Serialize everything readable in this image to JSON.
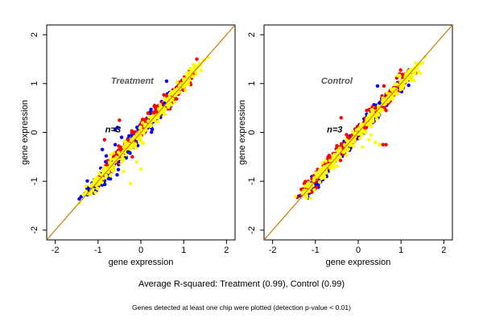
{
  "chart_data": [
    {
      "type": "scatter",
      "title": "Treatment",
      "annotation": "n=3",
      "xlabel": "gene expression",
      "ylabel": "gene expression",
      "xlim": [
        -2.2,
        2.2
      ],
      "ylim": [
        -2.2,
        2.2
      ],
      "xticks": [
        "-2",
        "-1",
        "0",
        "1",
        "2"
      ],
      "yticks": [
        "-2",
        "-1",
        "0",
        "1",
        "2"
      ],
      "reference_line": {
        "slope": 1,
        "intercept": 0,
        "color": "#cc7a00"
      },
      "grid": false,
      "series": [
        {
          "color": "#0000ff",
          "role": "bulk",
          "x": [
            -1.1,
            -0.9,
            -0.7,
            -0.5,
            -0.3,
            -0.1,
            0.1,
            0.3,
            0.5
          ],
          "y": [
            -1.08,
            -0.95,
            -0.62,
            -0.55,
            -0.35,
            -0.05,
            0.12,
            0.27,
            0.55
          ]
        },
        {
          "color": "#ff0000",
          "role": "bulk",
          "x": [
            -0.8,
            -0.4,
            0.0,
            0.4,
            0.8,
            1.0
          ],
          "y": [
            -0.75,
            -0.32,
            0.05,
            0.45,
            0.78,
            1.02
          ]
        },
        {
          "color": "#ffff00",
          "role": "bulk",
          "x": [
            -1.1,
            -0.8,
            -0.5,
            -0.2,
            0.1,
            0.4,
            0.7,
            1.0,
            1.2
          ],
          "y": [
            -1.1,
            -0.8,
            -0.5,
            -0.2,
            0.1,
            0.4,
            0.7,
            1.0,
            1.2
          ]
        },
        {
          "color": "#0000ff",
          "role": "outliers",
          "x": [
            -0.6,
            -0.55,
            -0.45,
            -0.6,
            -0.9,
            -0.3,
            0.6,
            0.55,
            -0.5
          ],
          "y": [
            0.05,
            0.1,
            -0.1,
            -0.25,
            -0.35,
            -0.4,
            1.05,
            0.6,
            -0.6
          ]
        },
        {
          "color": "#ff0000",
          "role": "outliers",
          "x": [
            -0.85,
            -0.5,
            -0.3,
            0.6,
            0.3,
            -0.2
          ],
          "y": [
            -0.15,
            0.25,
            -0.15,
            0.75,
            0.4,
            -0.5
          ]
        },
        {
          "color": "#ffff00",
          "role": "outliers",
          "x": [
            -0.45,
            -0.1,
            0.0,
            -0.4,
            -0.35,
            -0.4,
            -0.7,
            -0.25,
            -0.4
          ],
          "y": [
            -0.6,
            -0.6,
            -0.75,
            -0.4,
            -0.2,
            -0.8,
            -0.55,
            -1.05,
            -0.3
          ]
        }
      ]
    },
    {
      "type": "scatter",
      "title": "Control",
      "annotation": "n=3",
      "xlabel": "gene expression",
      "ylabel": "gene expression",
      "xlim": [
        -2.2,
        2.2
      ],
      "ylim": [
        -2.2,
        2.2
      ],
      "xticks": [
        "-2",
        "-1",
        "0",
        "1",
        "2"
      ],
      "yticks": [
        "-2",
        "-1",
        "0",
        "1",
        "2"
      ],
      "reference_line": {
        "slope": 1,
        "intercept": 0,
        "color": "#cc7a00"
      },
      "grid": false,
      "series": [
        {
          "color": "#0000ff",
          "role": "bulk",
          "x": [
            -1.1,
            -0.9,
            -0.6,
            -0.3,
            0.0,
            0.3,
            0.6,
            0.9
          ],
          "y": [
            -1.15,
            -0.92,
            -0.6,
            -0.3,
            0.02,
            0.32,
            0.6,
            0.9
          ]
        },
        {
          "color": "#ff0000",
          "role": "bulk",
          "x": [
            -1.1,
            -0.8,
            -0.5,
            -0.2,
            0.1,
            0.4,
            0.7,
            1.0
          ],
          "y": [
            -1.05,
            -0.76,
            -0.46,
            -0.18,
            0.12,
            0.43,
            0.74,
            1.02
          ]
        },
        {
          "color": "#ffff00",
          "role": "bulk",
          "x": [
            -1.1,
            -0.8,
            -0.5,
            -0.2,
            0.1,
            0.4,
            0.7,
            1.0,
            1.2
          ],
          "y": [
            -1.1,
            -0.8,
            -0.5,
            -0.2,
            0.1,
            0.4,
            0.7,
            1.0,
            1.2
          ]
        },
        {
          "color": "#0000ff",
          "role": "outliers",
          "x": [
            0.45,
            0.5
          ],
          "y": [
            0.95,
            0.6
          ]
        },
        {
          "color": "#ff0000",
          "role": "outliers",
          "x": [
            0.5,
            0.58,
            0.65,
            0.6,
            0.65,
            -0.4,
            0.15,
            0.4,
            0.2
          ],
          "y": [
            -0.25,
            -0.25,
            -0.25,
            0.95,
            0.45,
            0.3,
            0.1,
            0.5,
            0.45
          ]
        },
        {
          "color": "#ffff00",
          "role": "outliers",
          "x": [
            0.4,
            0.25,
            0.3,
            0.1,
            0.5
          ],
          "y": [
            -0.2,
            -0.15,
            -0.05,
            -0.3,
            -0.25
          ]
        }
      ]
    }
  ],
  "caption": "Average R-squared: Treatment (0.99), Control (0.99)",
  "footnote": "Genes detected at least one chip were plotted (detection p-value < 0.01)"
}
